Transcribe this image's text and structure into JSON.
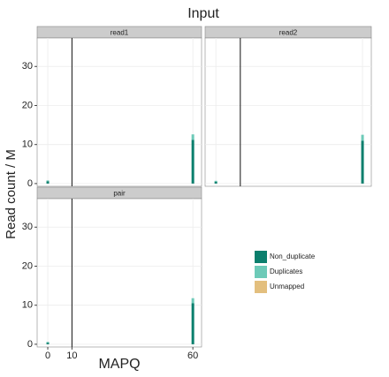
{
  "title": "Input",
  "x_label": "MAPQ",
  "y_label": "Read count / M",
  "chart_data": [
    {
      "type": "bar",
      "title": "read1",
      "x": [
        0,
        60
      ],
      "series": [
        {
          "name": "Non_duplicate",
          "color": "#0b7f6d",
          "values": [
            0.6,
            11.2
          ]
        },
        {
          "name": "Duplicates",
          "color": "#6dcab8",
          "values": [
            0.2,
            1.4
          ]
        },
        {
          "name": "Unmapped",
          "color": "#e3bf7e",
          "values": [
            0,
            0
          ]
        }
      ],
      "vline": 10,
      "xlim": [
        -4.4,
        63.6
      ],
      "ylim": [
        -0.7,
        37.3
      ],
      "xticks": [
        0,
        10,
        60
      ],
      "yticks": [
        0,
        10,
        20,
        30
      ],
      "grid": true
    },
    {
      "type": "bar",
      "title": "read2",
      "x": [
        0,
        60
      ],
      "series": [
        {
          "name": "Non_duplicate",
          "color": "#0b7f6d",
          "values": [
            0.5,
            11.0
          ]
        },
        {
          "name": "Duplicates",
          "color": "#6dcab8",
          "values": [
            0.2,
            1.5
          ]
        },
        {
          "name": "Unmapped",
          "color": "#e3bf7e",
          "values": [
            0,
            0
          ]
        }
      ],
      "vline": 10,
      "xlim": [
        -4.4,
        63.6
      ],
      "ylim": [
        -0.7,
        37.3
      ],
      "xticks": [
        0,
        10,
        60
      ],
      "yticks": [
        0,
        10,
        20,
        30
      ],
      "grid": true
    },
    {
      "type": "bar",
      "title": "pair",
      "x": [
        0,
        60
      ],
      "series": [
        {
          "name": "Non_duplicate",
          "color": "#0b7f6d",
          "values": [
            0.4,
            10.5
          ]
        },
        {
          "name": "Duplicates",
          "color": "#6dcab8",
          "values": [
            0.2,
            1.3
          ]
        },
        {
          "name": "Unmapped",
          "color": "#e3bf7e",
          "values": [
            0,
            0
          ]
        }
      ],
      "vline": 10,
      "xlim": [
        -4.4,
        63.6
      ],
      "ylim": [
        -0.7,
        37.3
      ],
      "xticks": [
        0,
        10,
        60
      ],
      "yticks": [
        0,
        10,
        20,
        30
      ],
      "grid": true
    }
  ]
}
